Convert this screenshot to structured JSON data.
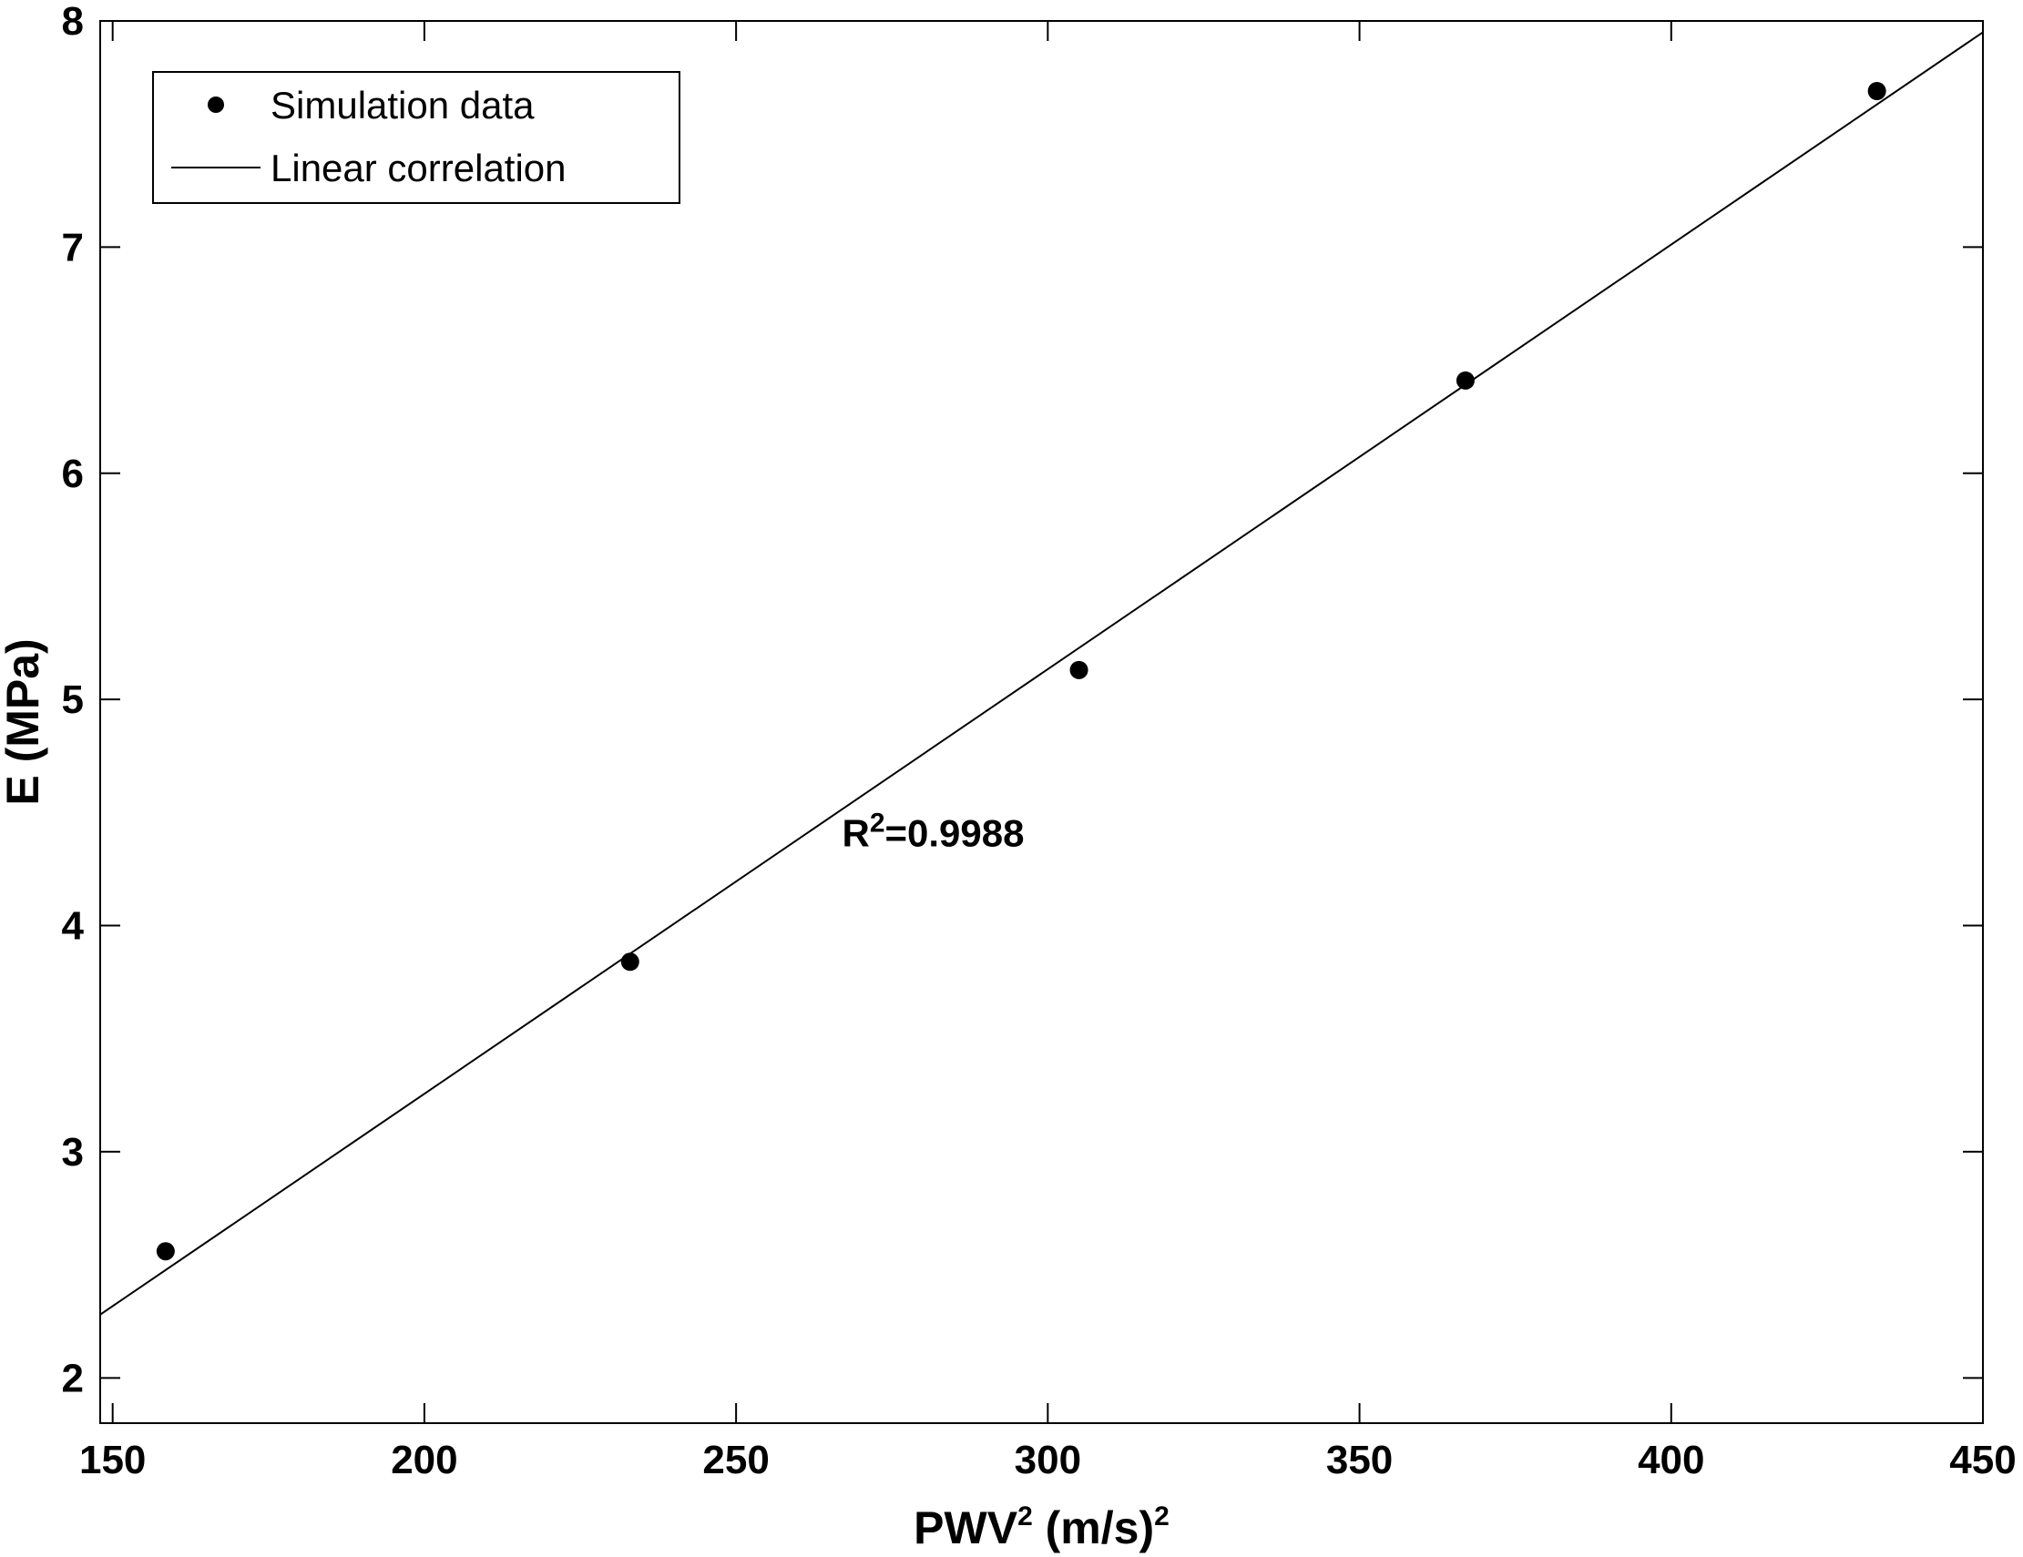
{
  "chart_data": {
    "type": "scatter",
    "title": "",
    "xlabel": {
      "base": "PWV",
      "sup1": "2",
      "mid": " (m/s)",
      "sup2": "2"
    },
    "ylabel": "E (MPa)",
    "xlim": [
      148,
      450
    ],
    "ylim": [
      1.8,
      8
    ],
    "xticks": [
      150,
      200,
      250,
      300,
      350,
      400,
      450
    ],
    "yticks": [
      2,
      3,
      4,
      5,
      6,
      7,
      8
    ],
    "grid": false,
    "legend_position": "top-left",
    "series": [
      {
        "name": "Simulation data",
        "kind": "scatter",
        "color": "#000000",
        "x": [
          158.5,
          233,
          305,
          367,
          433
        ],
        "y": [
          2.56,
          3.84,
          5.13,
          6.41,
          7.69
        ]
      },
      {
        "name": "Linear correlation",
        "kind": "line",
        "color": "#000000",
        "x": [
          148,
          450
        ],
        "y": [
          2.28,
          7.95
        ]
      }
    ],
    "annotation": {
      "base": "R",
      "sup": "2",
      "rest": "=0.9988",
      "x": 267,
      "y": 4.35
    }
  }
}
